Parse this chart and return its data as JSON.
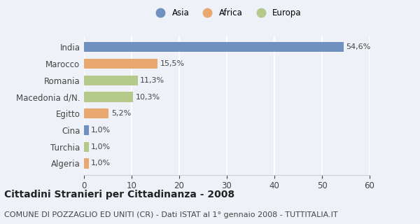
{
  "categories": [
    "Algeria",
    "Turchia",
    "Cina",
    "Egitto",
    "Macedonia d/N.",
    "Romania",
    "Marocco",
    "India"
  ],
  "values": [
    1.0,
    1.0,
    1.0,
    5.2,
    10.3,
    11.3,
    15.5,
    54.6
  ],
  "colors": [
    "#e8a870",
    "#b5c98a",
    "#7090c0",
    "#e8a870",
    "#b5c98a",
    "#b5c98a",
    "#e8a870",
    "#7090c0"
  ],
  "labels": [
    "1,0%",
    "1,0%",
    "1,0%",
    "5,2%",
    "10,3%",
    "11,3%",
    "15,5%",
    "54,6%"
  ],
  "legend_labels": [
    "Asia",
    "Africa",
    "Europa"
  ],
  "legend_colors": [
    "#7090c0",
    "#e8a870",
    "#b5c98a"
  ],
  "title": "Cittadini Stranieri per Cittadinanza - 2008",
  "subtitle": "COMUNE DI POZZAGLIO ED UNITI (CR) - Dati ISTAT al 1° gennaio 2008 - TUTTITALIA.IT",
  "xlim": [
    0,
    60
  ],
  "xticks": [
    0,
    10,
    20,
    30,
    40,
    50,
    60
  ],
  "background_color": "#eef2f8",
  "bar_height": 0.6,
  "title_fontsize": 10,
  "subtitle_fontsize": 8,
  "label_fontsize": 8,
  "tick_fontsize": 8.5
}
